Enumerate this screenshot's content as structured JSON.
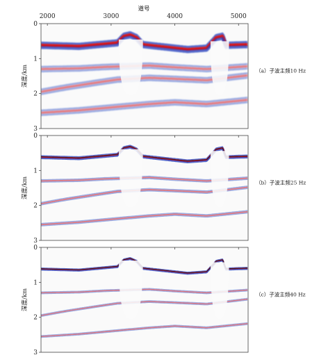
{
  "figure": {
    "top_axis_label": "道号",
    "x_ticks": [
      2000,
      3000,
      4000,
      5000
    ],
    "x_range": [
      1900,
      5150
    ]
  },
  "chart_data": [
    {
      "type": "heatmap",
      "title": "",
      "caption": "（a）子波主频10 Hz",
      "ylabel": "深度/km",
      "xlabel": "道号",
      "xlim": [
        1900,
        5150
      ],
      "ylim": [
        0,
        3
      ],
      "y_ticks": [
        0,
        1,
        2,
        3
      ],
      "wavelet_frequency_hz": 10,
      "colormap": [
        "#1f3fbf",
        "#ffffff",
        "#d4141e"
      ],
      "reflectors": [
        {
          "name": "salt-top",
          "depth_km": [
            [
              1900,
              0.62
            ],
            [
              2500,
              0.65
            ],
            [
              3100,
              0.55
            ],
            [
              3200,
              0.36
            ],
            [
              3300,
              0.32
            ],
            [
              3400,
              0.4
            ],
            [
              3500,
              0.6
            ],
            [
              3800,
              0.66
            ],
            [
              4200,
              0.74
            ],
            [
              4500,
              0.7
            ],
            [
              4650,
              0.4
            ],
            [
              4750,
              0.36
            ],
            [
              4800,
              0.62
            ],
            [
              5150,
              0.6
            ]
          ]
        },
        {
          "name": "layer-1",
          "depth_km": [
            [
              1900,
              1.3
            ],
            [
              2500,
              1.28
            ],
            [
              2900,
              1.24
            ],
            [
              3600,
              1.2
            ],
            [
              4000,
              1.25
            ],
            [
              4500,
              1.3
            ],
            [
              5150,
              1.22
            ]
          ]
        },
        {
          "name": "layer-2",
          "depth_km": [
            [
              1900,
              1.95
            ],
            [
              2300,
              1.82
            ],
            [
              2800,
              1.68
            ],
            [
              3100,
              1.6
            ],
            [
              3600,
              1.55
            ],
            [
              4000,
              1.58
            ],
            [
              4500,
              1.62
            ],
            [
              5150,
              1.48
            ]
          ]
        },
        {
          "name": "layer-3",
          "depth_km": [
            [
              1900,
              2.55
            ],
            [
              2500,
              2.48
            ],
            [
              3100,
              2.38
            ],
            [
              3600,
              2.3
            ],
            [
              4000,
              2.25
            ],
            [
              4500,
              2.3
            ],
            [
              5150,
              2.18
            ]
          ]
        }
      ]
    },
    {
      "type": "heatmap",
      "title": "",
      "caption": "（b）子波主频25 Hz",
      "ylabel": "深度/km",
      "xlabel": "道号",
      "xlim": [
        1900,
        5150
      ],
      "ylim": [
        0,
        3
      ],
      "y_ticks": [
        0,
        1,
        2,
        3
      ],
      "wavelet_frequency_hz": 25,
      "colormap": [
        "#1f3fbf",
        "#ffffff",
        "#d4141e"
      ],
      "reflectors": [
        {
          "name": "salt-top",
          "depth_km": [
            [
              1900,
              0.62
            ],
            [
              2500,
              0.65
            ],
            [
              3100,
              0.55
            ],
            [
              3200,
              0.36
            ],
            [
              3300,
              0.32
            ],
            [
              3400,
              0.4
            ],
            [
              3500,
              0.6
            ],
            [
              3800,
              0.66
            ],
            [
              4200,
              0.74
            ],
            [
              4500,
              0.7
            ],
            [
              4650,
              0.4
            ],
            [
              4750,
              0.36
            ],
            [
              4800,
              0.62
            ],
            [
              5150,
              0.6
            ]
          ]
        },
        {
          "name": "layer-1",
          "depth_km": [
            [
              1900,
              1.3
            ],
            [
              2500,
              1.28
            ],
            [
              2900,
              1.24
            ],
            [
              3600,
              1.2
            ],
            [
              4000,
              1.25
            ],
            [
              4500,
              1.3
            ],
            [
              5150,
              1.22
            ]
          ]
        },
        {
          "name": "layer-2",
          "depth_km": [
            [
              1900,
              1.95
            ],
            [
              2300,
              1.82
            ],
            [
              2800,
              1.68
            ],
            [
              3100,
              1.6
            ],
            [
              3600,
              1.55
            ],
            [
              4000,
              1.58
            ],
            [
              4500,
              1.62
            ],
            [
              5150,
              1.48
            ]
          ]
        },
        {
          "name": "layer-3",
          "depth_km": [
            [
              1900,
              2.55
            ],
            [
              2500,
              2.48
            ],
            [
              3100,
              2.38
            ],
            [
              3600,
              2.3
            ],
            [
              4000,
              2.25
            ],
            [
              4500,
              2.3
            ],
            [
              5150,
              2.18
            ]
          ]
        }
      ]
    },
    {
      "type": "heatmap",
      "title": "",
      "caption": "（c）子波主频40 Hz",
      "ylabel": "深度/km",
      "xlabel": "道号",
      "xlim": [
        1900,
        5150
      ],
      "ylim": [
        0,
        3
      ],
      "y_ticks": [
        0,
        1,
        2,
        3
      ],
      "wavelet_frequency_hz": 40,
      "colormap": [
        "#1f3fbf",
        "#ffffff",
        "#d4141e"
      ],
      "reflectors": [
        {
          "name": "salt-top",
          "depth_km": [
            [
              1900,
              0.62
            ],
            [
              2500,
              0.65
            ],
            [
              3100,
              0.55
            ],
            [
              3200,
              0.36
            ],
            [
              3300,
              0.32
            ],
            [
              3400,
              0.4
            ],
            [
              3500,
              0.6
            ],
            [
              3800,
              0.66
            ],
            [
              4200,
              0.74
            ],
            [
              4500,
              0.7
            ],
            [
              4650,
              0.4
            ],
            [
              4750,
              0.36
            ],
            [
              4800,
              0.62
            ],
            [
              5150,
              0.6
            ]
          ]
        },
        {
          "name": "layer-1",
          "depth_km": [
            [
              1900,
              1.3
            ],
            [
              2500,
              1.28
            ],
            [
              2900,
              1.24
            ],
            [
              3600,
              1.2
            ],
            [
              4000,
              1.25
            ],
            [
              4500,
              1.3
            ],
            [
              5150,
              1.22
            ]
          ]
        },
        {
          "name": "layer-2",
          "depth_km": [
            [
              1900,
              1.95
            ],
            [
              2300,
              1.82
            ],
            [
              2800,
              1.68
            ],
            [
              3100,
              1.6
            ],
            [
              3600,
              1.55
            ],
            [
              4000,
              1.58
            ],
            [
              4500,
              1.62
            ],
            [
              5150,
              1.48
            ]
          ]
        },
        {
          "name": "layer-3",
          "depth_km": [
            [
              1900,
              2.55
            ],
            [
              2500,
              2.48
            ],
            [
              3100,
              2.38
            ],
            [
              3600,
              2.3
            ],
            [
              4000,
              2.25
            ],
            [
              4500,
              2.3
            ],
            [
              5150,
              2.18
            ]
          ]
        }
      ]
    }
  ]
}
